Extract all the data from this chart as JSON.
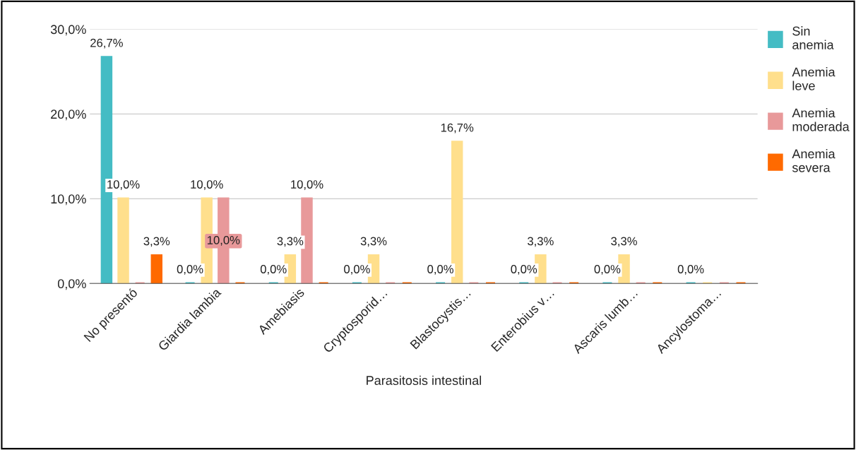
{
  "chart_data": {
    "type": "bar",
    "xlabel": "Parasitosis intestinal",
    "categories": [
      "No presentó",
      "Giardia lambia",
      "Amebiasis",
      "Cryptosporid…",
      "Blastocystis…",
      "Enterobius v…",
      "Ascaris lumb…",
      "Ancylostoma…"
    ],
    "series": [
      {
        "name": "Sin anemia",
        "color": "#44bcc4",
        "values": [
          26.7,
          0,
          0,
          0,
          0,
          0,
          0,
          0
        ],
        "value_labels": [
          "26,7%",
          "0,0%",
          "0,0%",
          "0,0%",
          "0,0%",
          "0,0%",
          "0,0%",
          "0,0%"
        ]
      },
      {
        "name": "Anemia leve",
        "color": "#ffdf8c",
        "values": [
          10.0,
          10.0,
          3.3,
          3.3,
          16.7,
          3.3,
          3.3,
          0
        ],
        "value_labels": [
          "10,0%",
          "10,0%",
          "3,3%",
          "3,3%",
          "16,7%",
          "3,3%",
          "3,3%",
          null
        ]
      },
      {
        "name": "Anemia moderada",
        "color": "#e8999a",
        "values": [
          0,
          10.0,
          10.0,
          0,
          0,
          0,
          0,
          0
        ],
        "value_labels": [
          null,
          "10,0%",
          "10,0%",
          null,
          null,
          null,
          null,
          null
        ]
      },
      {
        "name": "Anemia severa",
        "color": "#ff6a00",
        "values": [
          3.3,
          0,
          0,
          0,
          0,
          0,
          0,
          0
        ],
        "value_labels": [
          "3,3%",
          null,
          null,
          null,
          null,
          null,
          null,
          null
        ]
      }
    ],
    "ylim": [
      0,
      30
    ],
    "yticks": [
      {
        "value": 0,
        "label": "0,0%"
      },
      {
        "value": 10,
        "label": "10,0%"
      },
      {
        "value": 20,
        "label": "20,0%"
      },
      {
        "value": 30,
        "label": "30,0%"
      }
    ],
    "grid": "y",
    "legend": "right"
  }
}
